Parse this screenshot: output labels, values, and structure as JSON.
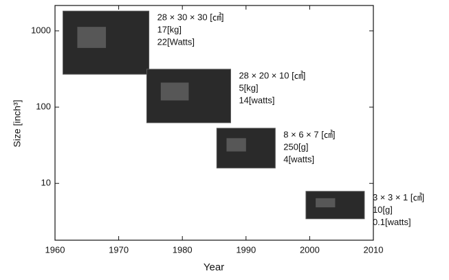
{
  "chart_data": {
    "type": "scatter",
    "x_label": "Year",
    "y_label": "Size [inch³]",
    "x": [
      1968,
      1981,
      1990,
      2004
    ],
    "series": [
      {
        "color": "#2a2a2a",
        "values": [
          700,
          140,
          29,
          5.2
        ]
      }
    ],
    "annotations": [
      [
        "28 × 30 × 30 [㎤]",
        "17[kg]",
        "22[Watts]"
      ],
      [
        "28 × 20 × 10 [㎤]",
        "5[kg]",
        "14[watts]"
      ],
      [
        "8 × 6 × 7 [㎤]",
        "250[g]",
        "4[watts]"
      ],
      [
        "3 × 3 × 1 [㎤]",
        "10[g]",
        "0.1[watts]"
      ]
    ],
    "xlim": [
      1960,
      2010
    ],
    "xticks": [
      1960,
      1970,
      1980,
      1990,
      2000,
      2010
    ],
    "ylim": [
      1.8,
      2150
    ],
    "yticks": [
      10,
      100,
      1000
    ],
    "ylog": true
  }
}
